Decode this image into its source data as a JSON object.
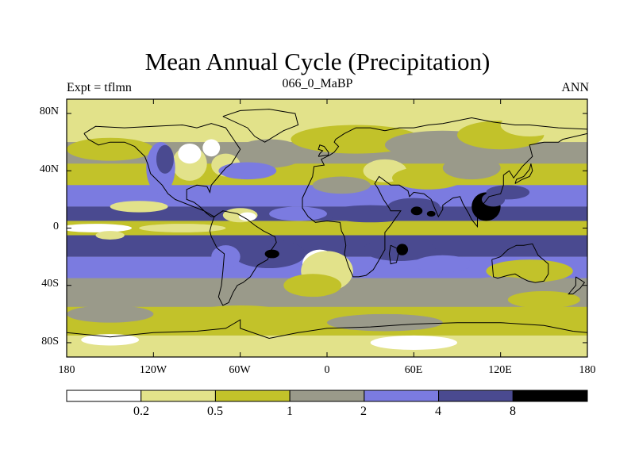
{
  "title": "Mean Annual Cycle (Precipitation)",
  "left_string": "Expt = tflmn",
  "center_string": "066_0_MaBP",
  "right_string": "ANN",
  "lat_labels": [
    "80N",
    "40N",
    "0",
    "40S",
    "80S"
  ],
  "lon_labels": [
    "180",
    "120W",
    "60W",
    "0",
    "60E",
    "120E",
    "180"
  ],
  "colorbar": {
    "colors": [
      "#ffffff",
      "#e2e28a",
      "#c2c22a",
      "#9a9a8a",
      "#7b7be0",
      "#4a4a90",
      "#000000"
    ],
    "labels": [
      "0.2",
      "0.5",
      "1",
      "2",
      "4",
      "8"
    ]
  },
  "chart_data": {
    "type": "contour_map",
    "variable": "Precipitation",
    "season": "ANN",
    "levels": [
      0.2,
      0.5,
      1,
      2,
      4,
      8
    ],
    "lat_range": [
      -90,
      90
    ],
    "lon_range": [
      -180,
      180
    ],
    "bands": [
      {
        "lat_range": [
          60,
          90
        ],
        "class": 1
      },
      {
        "lat_range": [
          45,
          60
        ],
        "class": 3
      },
      {
        "lat_range": [
          30,
          45
        ],
        "class": 2
      },
      {
        "lat_range": [
          15,
          30
        ],
        "class": 4
      },
      {
        "lat_range": [
          5,
          15
        ],
        "class": 5
      },
      {
        "lat_range": [
          -5,
          5
        ],
        "class": 2
      },
      {
        "lat_range": [
          -20,
          -5
        ],
        "class": 5
      },
      {
        "lat_range": [
          -35,
          -20
        ],
        "class": 4
      },
      {
        "lat_range": [
          -55,
          -35
        ],
        "class": 3
      },
      {
        "lat_range": [
          -75,
          -55
        ],
        "class": 2
      },
      {
        "lat_range": [
          -90,
          -75
        ],
        "class": 1
      }
    ],
    "colors": {
      "wet": "#4a4a90",
      "very_wet": "#000000"
    }
  }
}
